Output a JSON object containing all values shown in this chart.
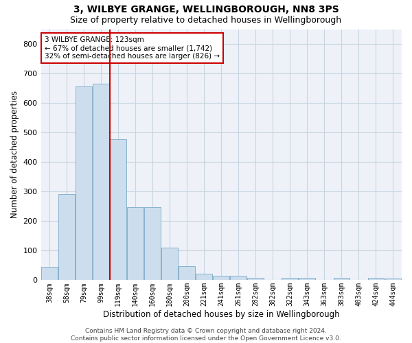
{
  "title": "3, WILBYE GRANGE, WELLINGBOROUGH, NN8 3PS",
  "subtitle": "Size of property relative to detached houses in Wellingborough",
  "xlabel": "Distribution of detached houses by size in Wellingborough",
  "ylabel": "Number of detached properties",
  "categories": [
    "38sqm",
    "58sqm",
    "79sqm",
    "99sqm",
    "119sqm",
    "140sqm",
    "160sqm",
    "180sqm",
    "200sqm",
    "221sqm",
    "241sqm",
    "261sqm",
    "282sqm",
    "302sqm",
    "322sqm",
    "343sqm",
    "363sqm",
    "383sqm",
    "403sqm",
    "424sqm",
    "444sqm"
  ],
  "values": [
    45,
    292,
    655,
    665,
    478,
    248,
    248,
    110,
    48,
    23,
    15,
    15,
    8,
    0,
    8,
    8,
    0,
    8,
    0,
    7,
    5
  ],
  "bar_color": "#ccdded",
  "bar_edge_color": "#7aaac8",
  "grid_color": "#c8d4e0",
  "bg_color": "#eef2f8",
  "vline_x_index": 4,
  "vline_color": "#cc0000",
  "annotation_text": "3 WILBYE GRANGE: 123sqm\n← 67% of detached houses are smaller (1,742)\n32% of semi-detached houses are larger (826) →",
  "annotation_box_color": "#cc0000",
  "footnote": "Contains HM Land Registry data © Crown copyright and database right 2024.\nContains public sector information licensed under the Open Government Licence v3.0.",
  "ylim": [
    0,
    850
  ],
  "yticks": [
    0,
    100,
    200,
    300,
    400,
    500,
    600,
    700,
    800
  ],
  "title_fontsize": 10,
  "subtitle_fontsize": 9
}
